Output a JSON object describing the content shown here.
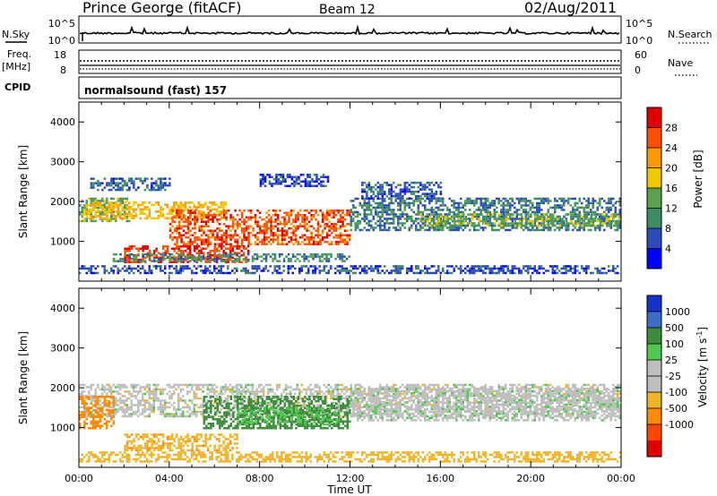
{
  "header": {
    "station": "Prince George (fitACF)",
    "beam": "Beam 12",
    "date": "02/Aug/2011"
  },
  "strip_nsky": {
    "left_label": "N.Sky",
    "right_label": "N.Search",
    "left_ticks": [
      "10^5",
      "10^0"
    ],
    "right_ticks": [
      "10^5",
      "10^0"
    ]
  },
  "strip_freq": {
    "left_label_line1": "Freq.",
    "left_label_line2": "[MHz]",
    "right_label": "Nave",
    "left_ticks": [
      "18",
      "8"
    ],
    "right_ticks": [
      "60",
      "0"
    ]
  },
  "strip_cpid": {
    "label": "CPID",
    "text": "normalsound (fast) 157"
  },
  "colors": {
    "power": [
      "#0000ff",
      "#2a4bb8",
      "#3c8c64",
      "#5aa050",
      "#f0c800",
      "#ff9900",
      "#ff5000",
      "#e00000"
    ],
    "velocity": [
      "#1432c8",
      "#3c6ec8",
      "#3c8c3c",
      "#50c850",
      "#bebebe",
      "#bebebe",
      "#f0b428",
      "#ff8c00",
      "#ff4600",
      "#e00000"
    ]
  },
  "chart_data": [
    {
      "type": "heatmap",
      "name": "Power",
      "ylabel": "Slant Range [km]",
      "yticks": [
        "1000",
        "2000",
        "3000",
        "4000"
      ],
      "ylim": [
        0,
        4500
      ],
      "colorbar_label": "Power [dB]",
      "colorbar_ticks": [
        "4",
        "8",
        "12",
        "16",
        "20",
        "24",
        "28"
      ],
      "colorbar_range": [
        0,
        32
      ],
      "features": [
        {
          "t0": 0.0,
          "t1": 2.2,
          "r0": 1500,
          "r1": 2100,
          "value": 14
        },
        {
          "t0": 0.3,
          "t1": 6.5,
          "r0": 1600,
          "r1": 2000,
          "value": 20
        },
        {
          "t0": 4.0,
          "t1": 12.0,
          "r0": 900,
          "r1": 1800,
          "value": 26
        },
        {
          "t0": 2.0,
          "t1": 7.5,
          "r0": 450,
          "r1": 900,
          "value": 28
        },
        {
          "t0": 1.5,
          "t1": 12.0,
          "r0": 500,
          "r1": 700,
          "value": 10
        },
        {
          "t0": 12.0,
          "t1": 24.0,
          "r0": 1300,
          "r1": 2100,
          "value": 9
        },
        {
          "t0": 15.0,
          "t1": 24.0,
          "r0": 1400,
          "r1": 1700,
          "value": 14
        },
        {
          "t0": 0.0,
          "t1": 24.0,
          "r0": 180,
          "r1": 400,
          "value": 6
        },
        {
          "t0": 0.5,
          "t1": 4.0,
          "r0": 2300,
          "r1": 2600,
          "value": 7
        },
        {
          "t0": 8.0,
          "t1": 11.0,
          "r0": 2400,
          "r1": 2700,
          "value": 5
        },
        {
          "t0": 12.5,
          "t1": 16.0,
          "r0": 2100,
          "r1": 2500,
          "value": 7
        }
      ]
    },
    {
      "type": "heatmap",
      "name": "Velocity",
      "ylabel": "Slant Range [km]",
      "yticks": [
        "1000",
        "2000",
        "3000",
        "4000"
      ],
      "ylim": [
        0,
        4500
      ],
      "colorbar_label": "Velocity [m s^-1]",
      "colorbar_ticks": [
        "1000",
        "500",
        "100",
        "25",
        "-25",
        "-100",
        "-500",
        "-1000"
      ],
      "features": [
        {
          "t0": 0.0,
          "t1": 24.0,
          "r0": 1300,
          "r1": 2100,
          "value": 0
        },
        {
          "t0": 0.0,
          "t1": 1.5,
          "r0": 1000,
          "r1": 1800,
          "value": -150
        },
        {
          "t0": 2.0,
          "t1": 7.0,
          "r0": 450,
          "r1": 850,
          "value": -80
        },
        {
          "t0": 5.5,
          "t1": 12.0,
          "r0": 1000,
          "r1": 1800,
          "value": 150
        },
        {
          "t0": 7.0,
          "t1": 11.5,
          "r0": 1050,
          "r1": 1500,
          "value": 90
        },
        {
          "t0": 12.0,
          "t1": 24.0,
          "r0": 1200,
          "r1": 2000,
          "value": 5
        },
        {
          "t0": 0.0,
          "t1": 24.0,
          "r0": 150,
          "r1": 400,
          "value": -60
        }
      ],
      "xlabel": "Time UT",
      "xticks": [
        "00:00",
        "04:00",
        "08:00",
        "12:00",
        "16:00",
        "20:00",
        "00:00"
      ],
      "xlim": [
        0,
        24
      ]
    }
  ]
}
